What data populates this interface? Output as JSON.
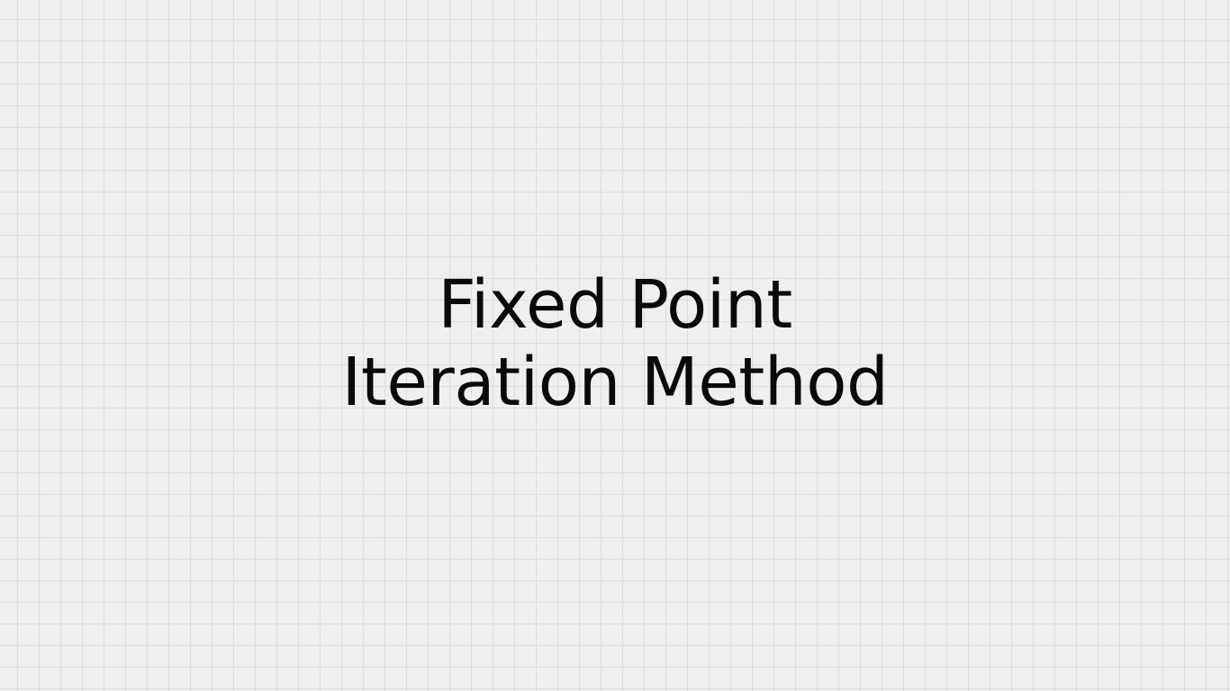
{
  "slide": {
    "title_lines": [
      "Fixed Point",
      "Iteration Method"
    ]
  },
  "colors": {
    "background": "#efefef",
    "grid_line": "#dcdcdc",
    "text": "#0a0a0a"
  }
}
